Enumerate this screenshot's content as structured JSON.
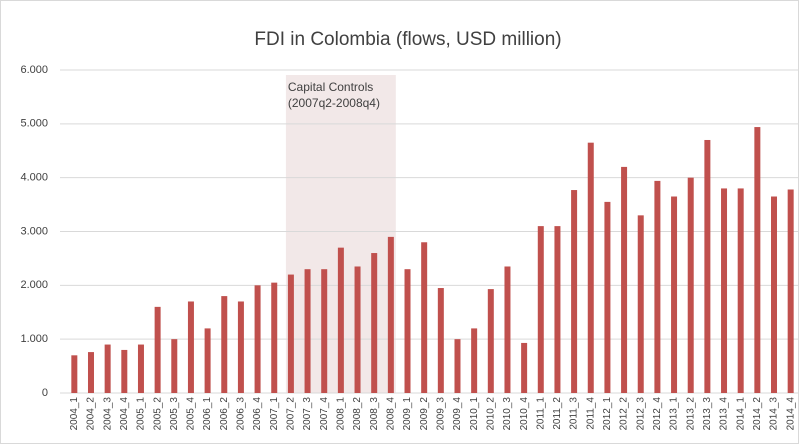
{
  "chart_data": {
    "type": "bar",
    "title": "FDI in Colombia (flows, USD million)",
    "categories": [
      "2004_1",
      "2004_2",
      "2004_3",
      "2004_4",
      "2005_1",
      "2005_2",
      "2005_3",
      "2005_4",
      "2006_1",
      "2006_2",
      "2006_3",
      "2006_4",
      "2007_1",
      "2007_2",
      "2007_3",
      "2007_4",
      "2008_1",
      "2008_2",
      "2008_3",
      "2008_4",
      "2009_1",
      "2009_2",
      "2009_3",
      "2009_4",
      "2010_1",
      "2010_2",
      "2010_3",
      "2010_4",
      "2011_1",
      "2011_2",
      "2011_3",
      "2011_4",
      "2012_1",
      "2012_2",
      "2012_3",
      "2012_4",
      "2013_1",
      "2013_2",
      "2013_3",
      "2013_4",
      "2014_1",
      "2014_2",
      "2014_3",
      "2014_4"
    ],
    "values": [
      700,
      760,
      900,
      800,
      900,
      1600,
      1000,
      1700,
      1200,
      1800,
      1700,
      2000,
      2050,
      2200,
      2300,
      2300,
      2700,
      2350,
      2600,
      2900,
      2300,
      2800,
      1950,
      1000,
      1200,
      1930,
      2350,
      930,
      3100,
      3100,
      3770,
      4650,
      3550,
      4200,
      3300,
      3940,
      3650,
      4000,
      4700,
      3800,
      3800,
      4940,
      3650,
      3780
    ],
    "color": "#c0504d",
    "ylim": [
      0,
      6000
    ],
    "yticks": [
      0,
      {
        "value": 1000,
        "label": "1.000"
      },
      {
        "value": 2000,
        "label": "2.000"
      },
      {
        "value": 3000,
        "label": "3.000"
      },
      {
        "value": 4000,
        "label": "4.000"
      },
      {
        "value": 5000,
        "label": "5.000"
      },
      {
        "value": 6000,
        "label": "6.000"
      }
    ],
    "grid": true,
    "annotation": {
      "lines": [
        "Capital Controls",
        "(2007q2-2008q4)"
      ],
      "span": [
        "2007_2",
        "2008_4"
      ],
      "color": "#f2e8e8"
    }
  }
}
